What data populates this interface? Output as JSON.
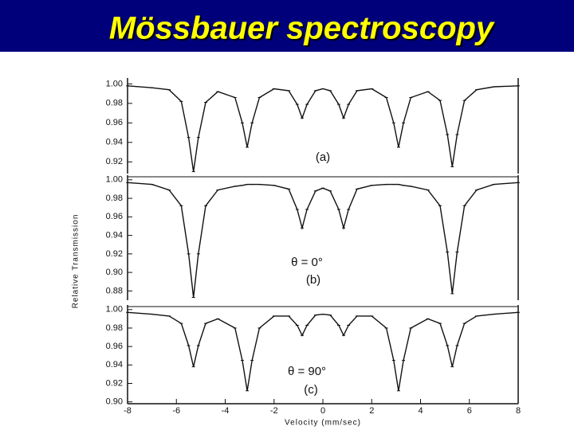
{
  "title": "Mössbauer spectroscopy",
  "chart_data": [
    {
      "type": "line",
      "annotations": [
        "(a)"
      ],
      "x": [
        -8,
        -7,
        -6.3,
        -5.8,
        -5.5,
        -5.3,
        -5.1,
        -4.8,
        -4.3,
        -3.6,
        -3.3,
        -3.1,
        -2.9,
        -2.6,
        -2,
        -1.4,
        -1.05,
        -0.85,
        -0.65,
        -0.3,
        0,
        0.3,
        0.65,
        0.85,
        1.05,
        1.4,
        2,
        2.6,
        2.9,
        3.1,
        3.3,
        3.6,
        4.3,
        4.8,
        5.1,
        5.3,
        5.5,
        5.8,
        6.3,
        7,
        8
      ],
      "values": [
        0.998,
        0.996,
        0.994,
        0.982,
        0.945,
        0.91,
        0.945,
        0.981,
        0.992,
        0.986,
        0.96,
        0.935,
        0.96,
        0.986,
        0.995,
        0.993,
        0.979,
        0.965,
        0.979,
        0.993,
        0.995,
        0.993,
        0.979,
        0.965,
        0.979,
        0.993,
        0.995,
        0.986,
        0.96,
        0.935,
        0.96,
        0.986,
        0.992,
        0.983,
        0.948,
        0.915,
        0.948,
        0.983,
        0.994,
        0.997,
        0.998
      ],
      "color": "#111111",
      "xlim": [
        -8,
        8
      ],
      "ylim": [
        0.908,
        1.006
      ],
      "yticks": [
        0.92,
        0.94,
        0.96,
        0.98,
        {
          "value": 1,
          "label": "1.00"
        }
      ]
    },
    {
      "type": "line",
      "annotations": [
        "θ = 0°",
        "(b)"
      ],
      "ylabel": "Relative Transmission",
      "x": [
        -8,
        -7,
        -6.3,
        -5.8,
        -5.5,
        -5.3,
        -5.1,
        -4.8,
        -4.3,
        -3.6,
        -3.3,
        -3.1,
        -2.9,
        -2.6,
        -2,
        -1.4,
        -1.05,
        -0.85,
        -0.65,
        -0.3,
        0,
        0.3,
        0.65,
        0.85,
        1.05,
        1.4,
        2,
        2.6,
        2.9,
        3.1,
        3.3,
        3.6,
        4.3,
        4.8,
        5.1,
        5.3,
        5.5,
        5.8,
        6.3,
        7,
        8
      ],
      "values": [
        0.997,
        0.995,
        0.989,
        0.972,
        0.92,
        0.873,
        0.92,
        0.972,
        0.989,
        0.993,
        0.994,
        0.995,
        0.995,
        0.995,
        0.994,
        0.99,
        0.968,
        0.948,
        0.968,
        0.988,
        0.991,
        0.988,
        0.968,
        0.948,
        0.968,
        0.99,
        0.994,
        0.995,
        0.995,
        0.995,
        0.994,
        0.993,
        0.989,
        0.972,
        0.922,
        0.877,
        0.922,
        0.972,
        0.989,
        0.995,
        0.997
      ],
      "color": "#111111",
      "xlim": [
        -8,
        8
      ],
      "ylim": [
        0.87,
        1.005
      ],
      "yticks": [
        0.88,
        {
          "value": 0.9,
          "label": "0.90"
        },
        0.92,
        0.94,
        0.96,
        0.98,
        {
          "value": 1,
          "label": "1.00"
        }
      ]
    },
    {
      "type": "line",
      "annotations": [
        "θ = 90°",
        "(c)"
      ],
      "xlabel": "Velocity (mm/sec)",
      "x": [
        -8,
        -7,
        -6.3,
        -5.8,
        -5.5,
        -5.3,
        -5.1,
        -4.8,
        -4.3,
        -3.6,
        -3.3,
        -3.1,
        -2.9,
        -2.6,
        -2,
        -1.4,
        -1.05,
        -0.85,
        -0.65,
        -0.3,
        0,
        0.3,
        0.65,
        0.85,
        1.05,
        1.4,
        2,
        2.6,
        2.9,
        3.1,
        3.3,
        3.6,
        4.3,
        4.8,
        5.1,
        5.3,
        5.5,
        5.8,
        6.3,
        7,
        8
      ],
      "values": [
        0.997,
        0.995,
        0.993,
        0.985,
        0.961,
        0.938,
        0.961,
        0.985,
        0.99,
        0.98,
        0.945,
        0.912,
        0.945,
        0.98,
        0.993,
        0.993,
        0.983,
        0.972,
        0.983,
        0.994,
        0.995,
        0.994,
        0.983,
        0.972,
        0.983,
        0.993,
        0.993,
        0.98,
        0.945,
        0.912,
        0.945,
        0.98,
        0.99,
        0.985,
        0.961,
        0.938,
        0.961,
        0.985,
        0.993,
        0.995,
        0.997
      ],
      "color": "#111111",
      "xlim": [
        -8,
        8
      ],
      "ylim": [
        0.898,
        1.005
      ],
      "xticks": [
        -8,
        -6,
        -4,
        -2,
        0,
        2,
        4,
        6,
        8
      ],
      "yticks": [
        {
          "value": 0.9,
          "label": "0.90"
        },
        0.92,
        0.94,
        0.96,
        0.98,
        {
          "value": 1,
          "label": "1.00"
        }
      ]
    }
  ]
}
